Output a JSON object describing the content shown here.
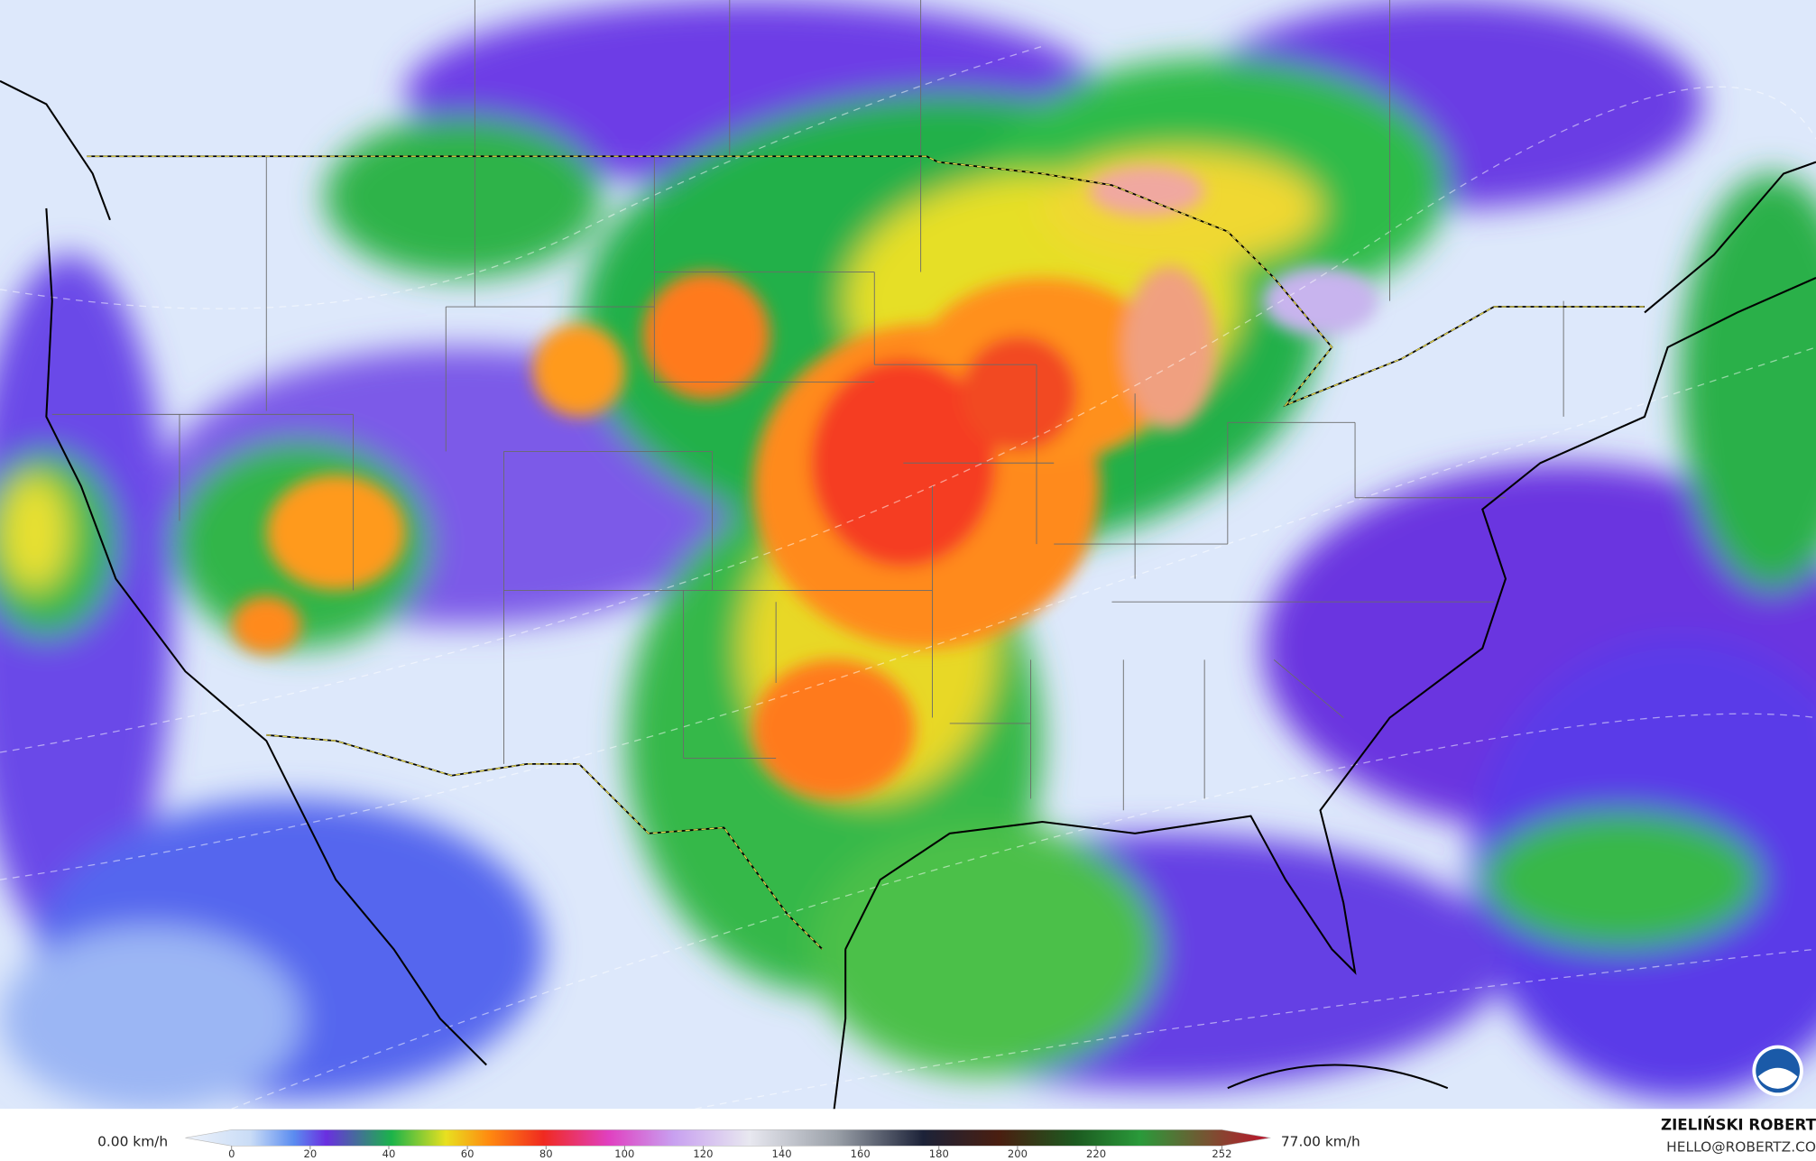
{
  "legend": {
    "min_label": "0.00 km/h",
    "max_label": "77.00 km/h",
    "ticks": [
      0,
      20,
      40,
      60,
      80,
      100,
      120,
      140,
      160,
      180,
      200,
      220,
      252
    ]
  },
  "credit": {
    "name": "ZIELIŃSKI ROBERT",
    "email": "HELLO@ROBERTZ.CO"
  }
}
